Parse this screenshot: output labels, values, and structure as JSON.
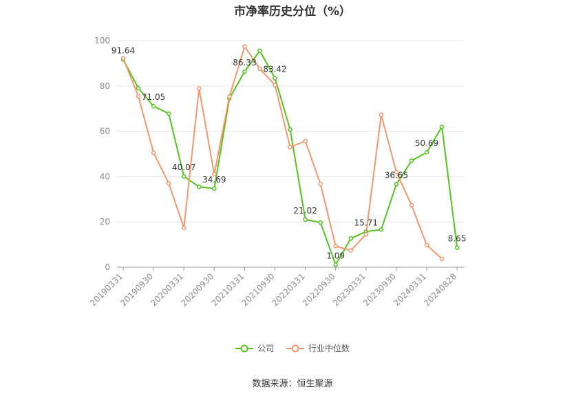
{
  "chart_data": {
    "type": "line",
    "title": "市净率历史分位（%）",
    "ylim": [
      0,
      100
    ],
    "yticks": [
      0,
      20,
      40,
      60,
      80,
      100
    ],
    "x_tick_labels": [
      "20190331",
      "20190930",
      "20200331",
      "20200930",
      "20210331",
      "20210930",
      "20220331",
      "20220930",
      "20230331",
      "20230930",
      "20240331",
      "20240828"
    ],
    "series": [
      {
        "name": "公司",
        "color": "#52c41a",
        "values": [
          91.64,
          79.0,
          71.05,
          67.8,
          40.07,
          35.5,
          34.69,
          74.5,
          86.33,
          95.5,
          83.42,
          60.8,
          21.02,
          19.7,
          1.09,
          12.7,
          15.71,
          16.6,
          36.65,
          47.0,
          50.69,
          62.0,
          8.65
        ],
        "labels": [
          "91.64",
          null,
          "71.05",
          null,
          "40.07",
          null,
          "34.69",
          null,
          "86.33",
          null,
          "83.42",
          null,
          "21.02",
          null,
          "1.09",
          null,
          "15.71",
          null,
          "36.65",
          null,
          "50.69",
          null,
          "8.65"
        ]
      },
      {
        "name": "行业中位数",
        "color": "#f5966b",
        "values": [
          92.2,
          75.4,
          50.5,
          37.0,
          17.4,
          78.9,
          41.0,
          75.3,
          97.4,
          87.6,
          80.4,
          53.0,
          55.7,
          36.7,
          9.3,
          7.4,
          14.5,
          67.3,
          42.0,
          27.3,
          9.8,
          3.7
        ]
      }
    ]
  },
  "source": "数据来源：恒生聚源"
}
